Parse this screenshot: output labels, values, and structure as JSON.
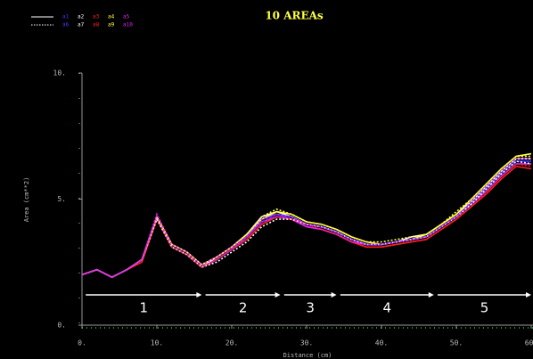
{
  "chart_data": {
    "type": "line",
    "title": "10 AREAs",
    "ylabel": "Area (cm**2)",
    "xlabel": "Distance (cm)",
    "xlim": [
      0,
      60
    ],
    "ylim": [
      0,
      10
    ],
    "xticks": [
      {
        "value": 0,
        "label": "0."
      },
      {
        "value": 10,
        "label": "10."
      },
      {
        "value": 20,
        "label": "20."
      },
      {
        "value": 30,
        "label": "30."
      },
      {
        "value": 40,
        "label": "40."
      },
      {
        "value": 50,
        "label": "50."
      },
      {
        "value": 60,
        "label": "60."
      }
    ],
    "yticks": [
      {
        "value": 0,
        "label": "0."
      },
      {
        "value": 5,
        "label": "5."
      },
      {
        "value": 10,
        "label": "10."
      }
    ],
    "grid": false,
    "x": [
      0,
      2,
      4,
      6,
      8,
      10,
      12,
      14,
      16,
      18,
      20,
      22,
      24,
      26,
      28,
      30,
      32,
      34,
      36,
      38,
      40,
      42,
      44,
      46,
      48,
      50,
      52,
      54,
      56,
      58,
      60
    ],
    "series": [
      {
        "name": "a1",
        "color": "#3a3aff",
        "linestyle": "solid",
        "values": [
          2.0,
          2.2,
          1.9,
          2.2,
          2.6,
          4.3,
          3.1,
          2.8,
          2.3,
          2.6,
          3.0,
          3.5,
          4.2,
          4.4,
          4.2,
          4.0,
          3.9,
          3.7,
          3.4,
          3.2,
          3.2,
          3.3,
          3.4,
          3.5,
          3.9,
          4.3,
          4.8,
          5.4,
          6.0,
          6.5,
          6.5
        ]
      },
      {
        "name": "a2",
        "color": "#ffffff",
        "linestyle": "solid",
        "values": [
          2.0,
          2.2,
          1.9,
          2.2,
          2.6,
          4.3,
          3.1,
          2.8,
          2.3,
          2.7,
          3.1,
          3.6,
          4.3,
          4.5,
          4.3,
          4.0,
          3.9,
          3.7,
          3.4,
          3.2,
          3.2,
          3.3,
          3.5,
          3.6,
          4.0,
          4.4,
          4.9,
          5.5,
          6.1,
          6.6,
          6.6
        ]
      },
      {
        "name": "a3",
        "color": "#ff2020",
        "linestyle": "solid",
        "values": [
          2.0,
          2.2,
          1.9,
          2.2,
          2.5,
          4.2,
          3.1,
          2.8,
          2.3,
          2.6,
          3.0,
          3.4,
          4.0,
          4.3,
          4.2,
          3.9,
          3.8,
          3.6,
          3.3,
          3.1,
          3.1,
          3.2,
          3.3,
          3.4,
          3.8,
          4.2,
          4.7,
          5.2,
          5.8,
          6.3,
          6.2
        ]
      },
      {
        "name": "a4",
        "color": "#ffff40",
        "linestyle": "solid",
        "values": [
          2.0,
          2.2,
          1.9,
          2.2,
          2.6,
          4.3,
          3.2,
          2.9,
          2.4,
          2.7,
          3.1,
          3.6,
          4.2,
          4.5,
          4.4,
          4.1,
          4.0,
          3.8,
          3.5,
          3.3,
          3.2,
          3.3,
          3.4,
          3.6,
          4.0,
          4.4,
          5.0,
          5.6,
          6.2,
          6.7,
          6.8
        ]
      },
      {
        "name": "a5",
        "color": "#e020ff",
        "linestyle": "solid",
        "values": [
          2.0,
          2.2,
          1.9,
          2.2,
          2.6,
          4.3,
          3.1,
          2.8,
          2.3,
          2.6,
          3.0,
          3.5,
          4.1,
          4.3,
          4.2,
          3.9,
          3.8,
          3.6,
          3.3,
          3.2,
          3.2,
          3.3,
          3.4,
          3.5,
          3.9,
          4.3,
          4.8,
          5.3,
          5.9,
          6.4,
          6.4
        ]
      },
      {
        "name": "a6",
        "color": "#3a3aff",
        "linestyle": "dotted",
        "values": [
          2.0,
          2.2,
          1.9,
          2.2,
          2.6,
          4.3,
          3.1,
          2.8,
          2.3,
          2.6,
          3.0,
          3.5,
          4.1,
          4.4,
          4.3,
          4.0,
          3.9,
          3.7,
          3.4,
          3.2,
          3.2,
          3.3,
          3.4,
          3.5,
          3.9,
          4.3,
          4.8,
          5.4,
          6.0,
          6.5,
          6.5
        ]
      },
      {
        "name": "a7",
        "color": "#ffffff",
        "linestyle": "dotted",
        "values": [
          2.0,
          2.2,
          1.9,
          2.2,
          2.6,
          4.2,
          3.1,
          2.8,
          2.3,
          2.5,
          2.9,
          3.3,
          3.9,
          4.2,
          4.2,
          4.0,
          3.9,
          3.7,
          3.4,
          3.2,
          3.2,
          3.3,
          3.4,
          3.5,
          3.9,
          4.3,
          4.8,
          5.4,
          6.0,
          6.5,
          6.4
        ]
      },
      {
        "name": "a8",
        "color": "#ff2020",
        "linestyle": "dotted",
        "values": [
          2.0,
          2.2,
          1.9,
          2.2,
          2.6,
          4.3,
          3.1,
          2.8,
          2.3,
          2.6,
          3.0,
          3.4,
          4.0,
          4.3,
          4.2,
          4.0,
          3.8,
          3.6,
          3.3,
          3.1,
          3.1,
          3.2,
          3.3,
          3.4,
          3.8,
          4.2,
          4.7,
          5.3,
          5.9,
          6.4,
          6.3
        ]
      },
      {
        "name": "a9",
        "color": "#ffff40",
        "linestyle": "dotted",
        "values": [
          2.0,
          2.2,
          1.9,
          2.2,
          2.6,
          4.3,
          3.2,
          2.9,
          2.4,
          2.7,
          3.1,
          3.6,
          4.3,
          4.6,
          4.4,
          4.1,
          4.0,
          3.8,
          3.5,
          3.3,
          3.3,
          3.4,
          3.5,
          3.6,
          4.0,
          4.5,
          5.0,
          5.6,
          6.2,
          6.7,
          6.7
        ]
      },
      {
        "name": "a10",
        "color": "#e020ff",
        "linestyle": "dotted",
        "values": [
          2.0,
          2.2,
          1.9,
          2.2,
          2.6,
          4.4,
          3.2,
          2.9,
          2.4,
          2.7,
          3.1,
          3.5,
          4.2,
          4.4,
          4.3,
          4.0,
          3.9,
          3.7,
          3.4,
          3.2,
          3.2,
          3.3,
          3.4,
          3.5,
          3.9,
          4.3,
          4.9,
          5.5,
          6.1,
          6.6,
          6.6
        ]
      }
    ],
    "regions": [
      {
        "label": "1",
        "x": [
          0.5,
          16
        ],
        "y": 1.2
      },
      {
        "label": "2",
        "x": [
          16.5,
          26.5
        ],
        "y": 1.2
      },
      {
        "label": "3",
        "x": [
          27,
          34
        ],
        "y": 1.2
      },
      {
        "label": "4",
        "x": [
          34.5,
          47
        ],
        "y": 1.2
      },
      {
        "label": "5",
        "x": [
          47.5,
          60
        ],
        "y": 1.2
      }
    ]
  }
}
